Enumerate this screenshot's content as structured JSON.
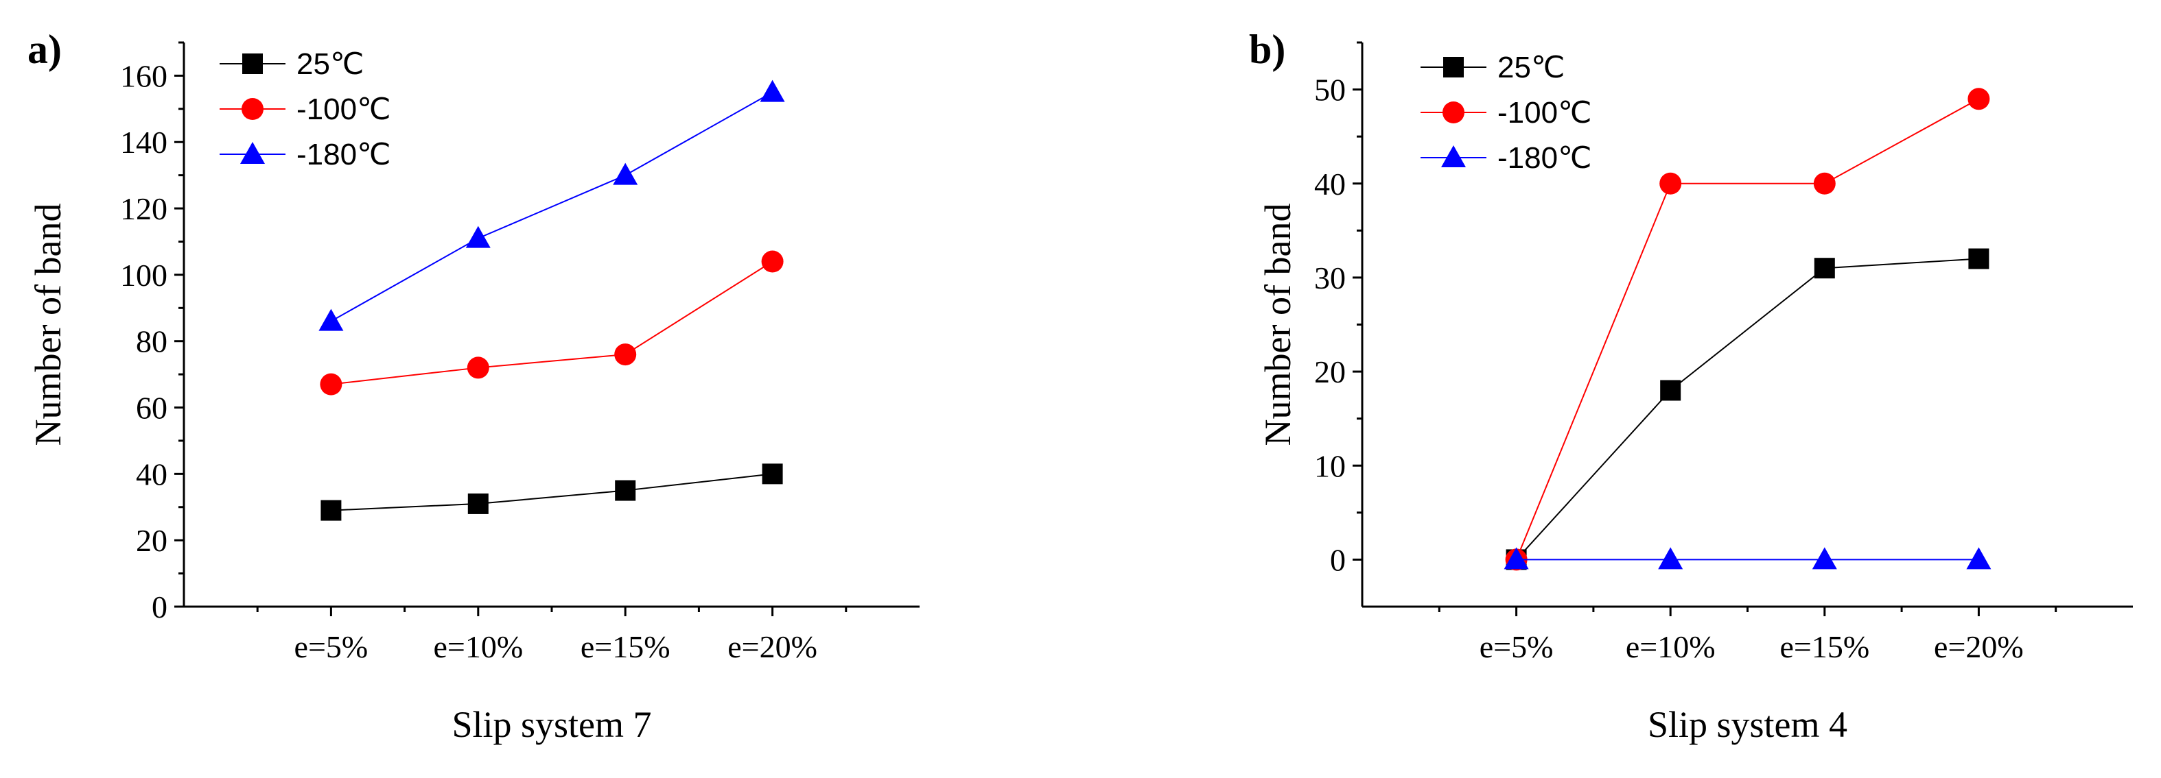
{
  "chart_data": [
    {
      "type": "line",
      "panel_label": "a)",
      "title": "",
      "xlabel": "Slip system 7",
      "ylabel": "Number of band",
      "categories": [
        "e=5%",
        "e=10%",
        "e=15%",
        "e=20%"
      ],
      "ylim": [
        0,
        170
      ],
      "yticks": [
        "0",
        "20",
        "40",
        "60",
        "80",
        "100",
        "120",
        "140",
        "160"
      ],
      "legend_position": "top-left",
      "series": [
        {
          "name": "25℃",
          "color": "#000000",
          "marker": "square",
          "values": [
            29,
            31,
            35,
            40
          ]
        },
        {
          "name": "-100℃",
          "color": "#ff0000",
          "marker": "circle",
          "values": [
            67,
            72,
            76,
            104
          ]
        },
        {
          "name": "-180℃",
          "color": "#0000ff",
          "marker": "triangle",
          "values": [
            86,
            111,
            130,
            155
          ]
        }
      ]
    },
    {
      "type": "line",
      "panel_label": "b)",
      "title": "",
      "xlabel": "Slip system 4",
      "ylabel": "Number of band",
      "categories": [
        "e=5%",
        "e=10%",
        "e=15%",
        "e=20%"
      ],
      "ylim": [
        -5,
        55
      ],
      "yticks": [
        "0",
        "10",
        "20",
        "30",
        "40",
        "50"
      ],
      "legend_position": "top-left",
      "series": [
        {
          "name": "25℃",
          "color": "#000000",
          "marker": "square",
          "values": [
            0,
            18,
            31,
            32
          ]
        },
        {
          "name": "-100℃",
          "color": "#ff0000",
          "marker": "circle",
          "values": [
            0,
            40,
            40,
            49
          ]
        },
        {
          "name": "-180℃",
          "color": "#0000ff",
          "marker": "triangle",
          "values": [
            0,
            0,
            0,
            0
          ]
        }
      ]
    }
  ]
}
